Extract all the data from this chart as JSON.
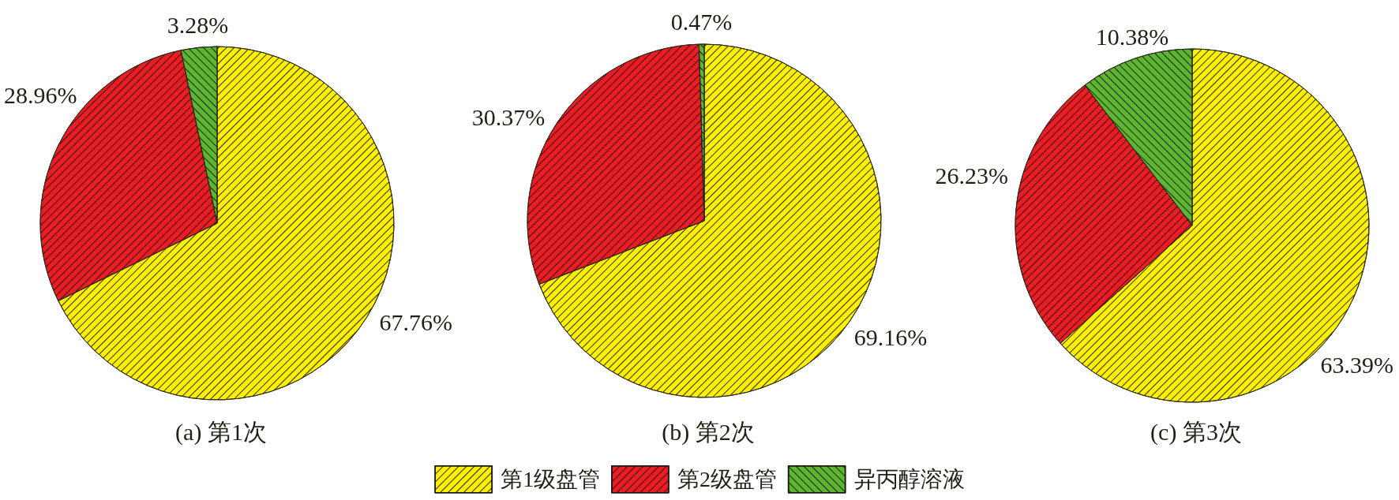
{
  "chart_data": {
    "type": "pie",
    "categories": [
      "第1级盘管",
      "第2级盘管",
      "异丙醇溶液"
    ],
    "colors": [
      "#fff000",
      "#ec1c24",
      "#5db531"
    ],
    "legend": "bottom",
    "series": [
      {
        "name": "(a) 第1次",
        "values": [
          67.76,
          28.96,
          3.28
        ],
        "value_labels": [
          "67.76%",
          "28.96%",
          "3.28%"
        ]
      },
      {
        "name": "(b) 第2次",
        "values": [
          69.16,
          30.37,
          0.47
        ],
        "value_labels": [
          "69.16%",
          "30.37%",
          "0.47%"
        ]
      },
      {
        "name": "(c) 第3次",
        "values": [
          63.39,
          26.23,
          10.38
        ],
        "value_labels": [
          "63.39%",
          "26.23%",
          "10.38%"
        ]
      }
    ]
  }
}
